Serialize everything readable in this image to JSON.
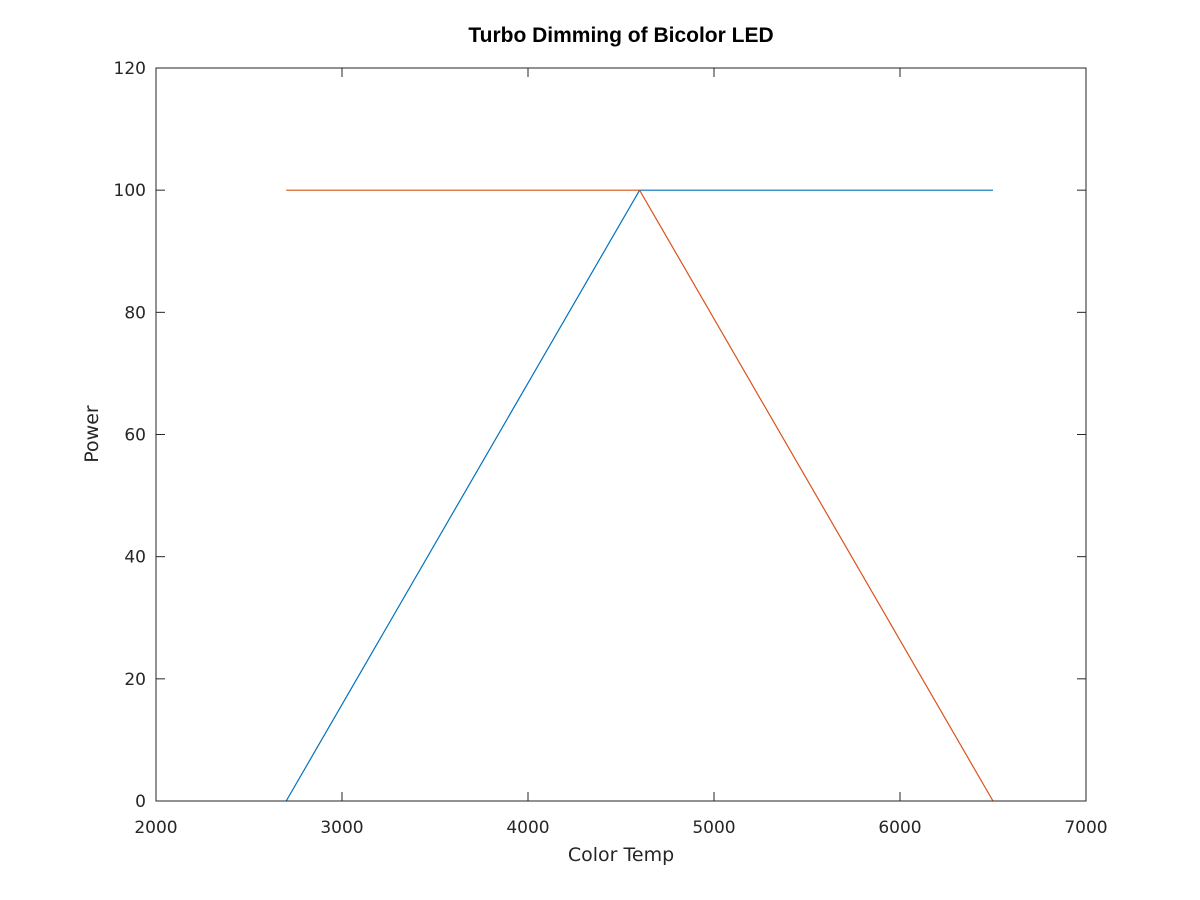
{
  "chart_data": {
    "type": "line",
    "title": "Turbo Dimming of Bicolor LED",
    "xlabel": "Color Temp",
    "ylabel": "Power",
    "xlim": [
      2000,
      7000
    ],
    "ylim": [
      0,
      120
    ],
    "xticks": [
      2000,
      3000,
      4000,
      5000,
      6000,
      7000
    ],
    "yticks": [
      0,
      20,
      40,
      60,
      80,
      100,
      120
    ],
    "grid": false,
    "series": [
      {
        "color": "#0072BD",
        "x": [
          2700,
          4600,
          6500
        ],
        "y": [
          0,
          100,
          100
        ]
      },
      {
        "color": "#D95319",
        "x": [
          2700,
          4600,
          6500
        ],
        "y": [
          100,
          100,
          0
        ]
      }
    ]
  }
}
